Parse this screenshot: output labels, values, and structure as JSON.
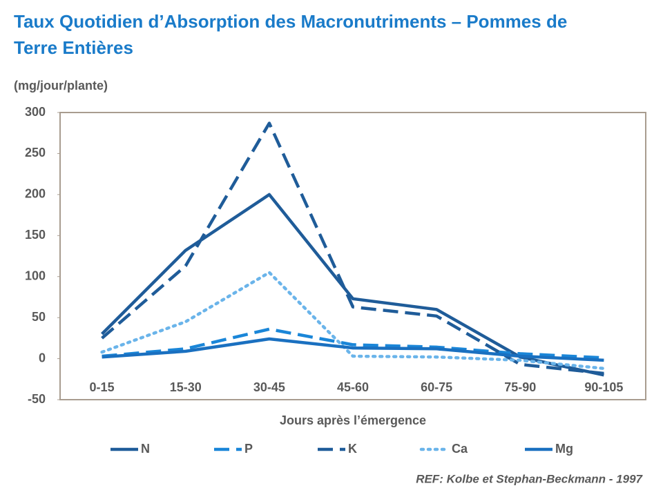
{
  "chart_data": {
    "type": "line",
    "title": "Taux Quotidien d’Absorption des Macronutriments – Pommes de Terre Entières",
    "y_label": "(mg/jour/plante)",
    "x_label": "Jours après l’émergence",
    "note": "REF: Kolbe et Stephan-Beckmann - 1997",
    "categories": [
      "0-15",
      "15-30",
      "30-45",
      "45-60",
      "60-75",
      "75-90",
      "90-105"
    ],
    "ylim": [
      -50,
      300
    ],
    "yticks": [
      -50,
      0,
      50,
      100,
      150,
      200,
      250,
      300
    ],
    "legend": "bottom",
    "series": [
      {
        "name": "N",
        "color": "#1f5c99",
        "style": "solid",
        "values": [
          30,
          132,
          200,
          73,
          60,
          2,
          -20
        ]
      },
      {
        "name": "P",
        "color": "#1a86d8",
        "style": "dashed",
        "values": [
          3,
          12,
          36,
          17,
          14,
          6,
          1
        ]
      },
      {
        "name": "K",
        "color": "#1f5c99",
        "style": "dashed",
        "values": [
          25,
          113,
          287,
          63,
          52,
          -7,
          -18
        ]
      },
      {
        "name": "Ca",
        "color": "#6ab4ea",
        "style": "dotted",
        "values": [
          8,
          45,
          105,
          3,
          2,
          -2,
          -12
        ]
      },
      {
        "name": "Mg",
        "color": "#1a70c0",
        "style": "solid",
        "values": [
          2,
          9,
          24,
          13,
          12,
          3,
          -2
        ]
      }
    ]
  }
}
